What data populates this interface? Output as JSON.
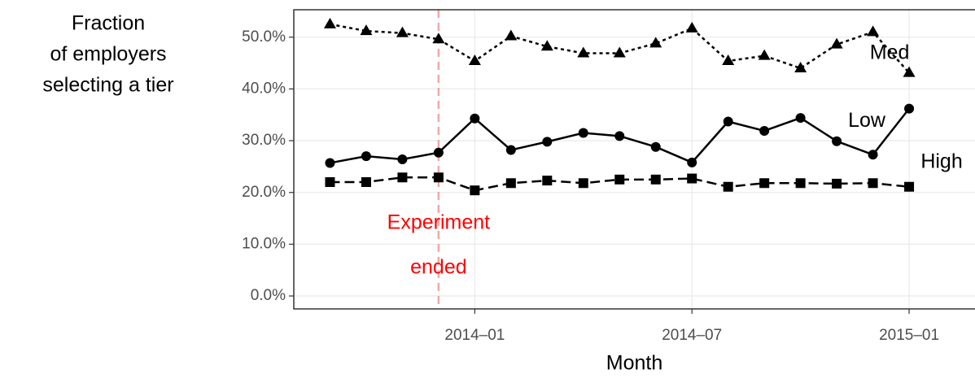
{
  "chart_data": {
    "type": "line",
    "ylabel_lines": [
      "Fraction",
      "of employers",
      "selecting a tier"
    ],
    "xlabel": "Month",
    "x": [
      "2013-09",
      "2013-10",
      "2013-11",
      "2013-12",
      "2014-01",
      "2014-02",
      "2014-03",
      "2014-04",
      "2014-05",
      "2014-06",
      "2014-07",
      "2014-08",
      "2014-09",
      "2014-10",
      "2014-11",
      "2014-12",
      "2015-01"
    ],
    "series": [
      {
        "name": "Med",
        "color": "#000000",
        "marker": "triangle",
        "dash": "dotted",
        "values": [
          52.5,
          51.2,
          50.8,
          49.6,
          45.4,
          50.2,
          48.2,
          46.9,
          46.9,
          48.8,
          51.7,
          45.4,
          46.4,
          44.0,
          48.6,
          51.0,
          43.1
        ]
      },
      {
        "name": "Low",
        "color": "#000000",
        "marker": "circle",
        "dash": "solid",
        "values": [
          25.7,
          27.0,
          26.4,
          27.7,
          34.3,
          28.2,
          29.8,
          31.5,
          30.9,
          28.8,
          25.8,
          33.7,
          31.9,
          34.4,
          29.9,
          27.3,
          36.2
        ]
      },
      {
        "name": "High",
        "color": "#000000",
        "marker": "square",
        "dash": "dashed",
        "values": [
          22.0,
          22.0,
          22.9,
          22.9,
          20.4,
          21.8,
          22.3,
          21.8,
          22.5,
          22.5,
          22.7,
          21.1,
          21.8,
          21.8,
          21.7,
          21.8,
          21.1
        ]
      }
    ],
    "xlim": [
      "2013-08",
      "2015-03"
    ],
    "xticks": [
      {
        "value": "2014-01",
        "label": "2014–01"
      },
      {
        "value": "2014-07",
        "label": "2014–07"
      },
      {
        "value": "2015-01",
        "label": "2015–01"
      }
    ],
    "ylim": [
      -2.5,
      55.3
    ],
    "yticks": [
      {
        "value": 0,
        "label": "0.0%"
      },
      {
        "value": 10,
        "label": "10.0%"
      },
      {
        "value": 20,
        "label": "20.0%"
      },
      {
        "value": 30,
        "label": "30.0%"
      },
      {
        "value": 40,
        "label": "40.0%"
      },
      {
        "value": 50,
        "label": "50.0%"
      }
    ],
    "grid": true,
    "annotation": {
      "x": "2013-12",
      "lines": [
        "Experiment",
        "ended"
      ],
      "color": "#ff0000",
      "line_color": "#f4a6a6"
    }
  }
}
